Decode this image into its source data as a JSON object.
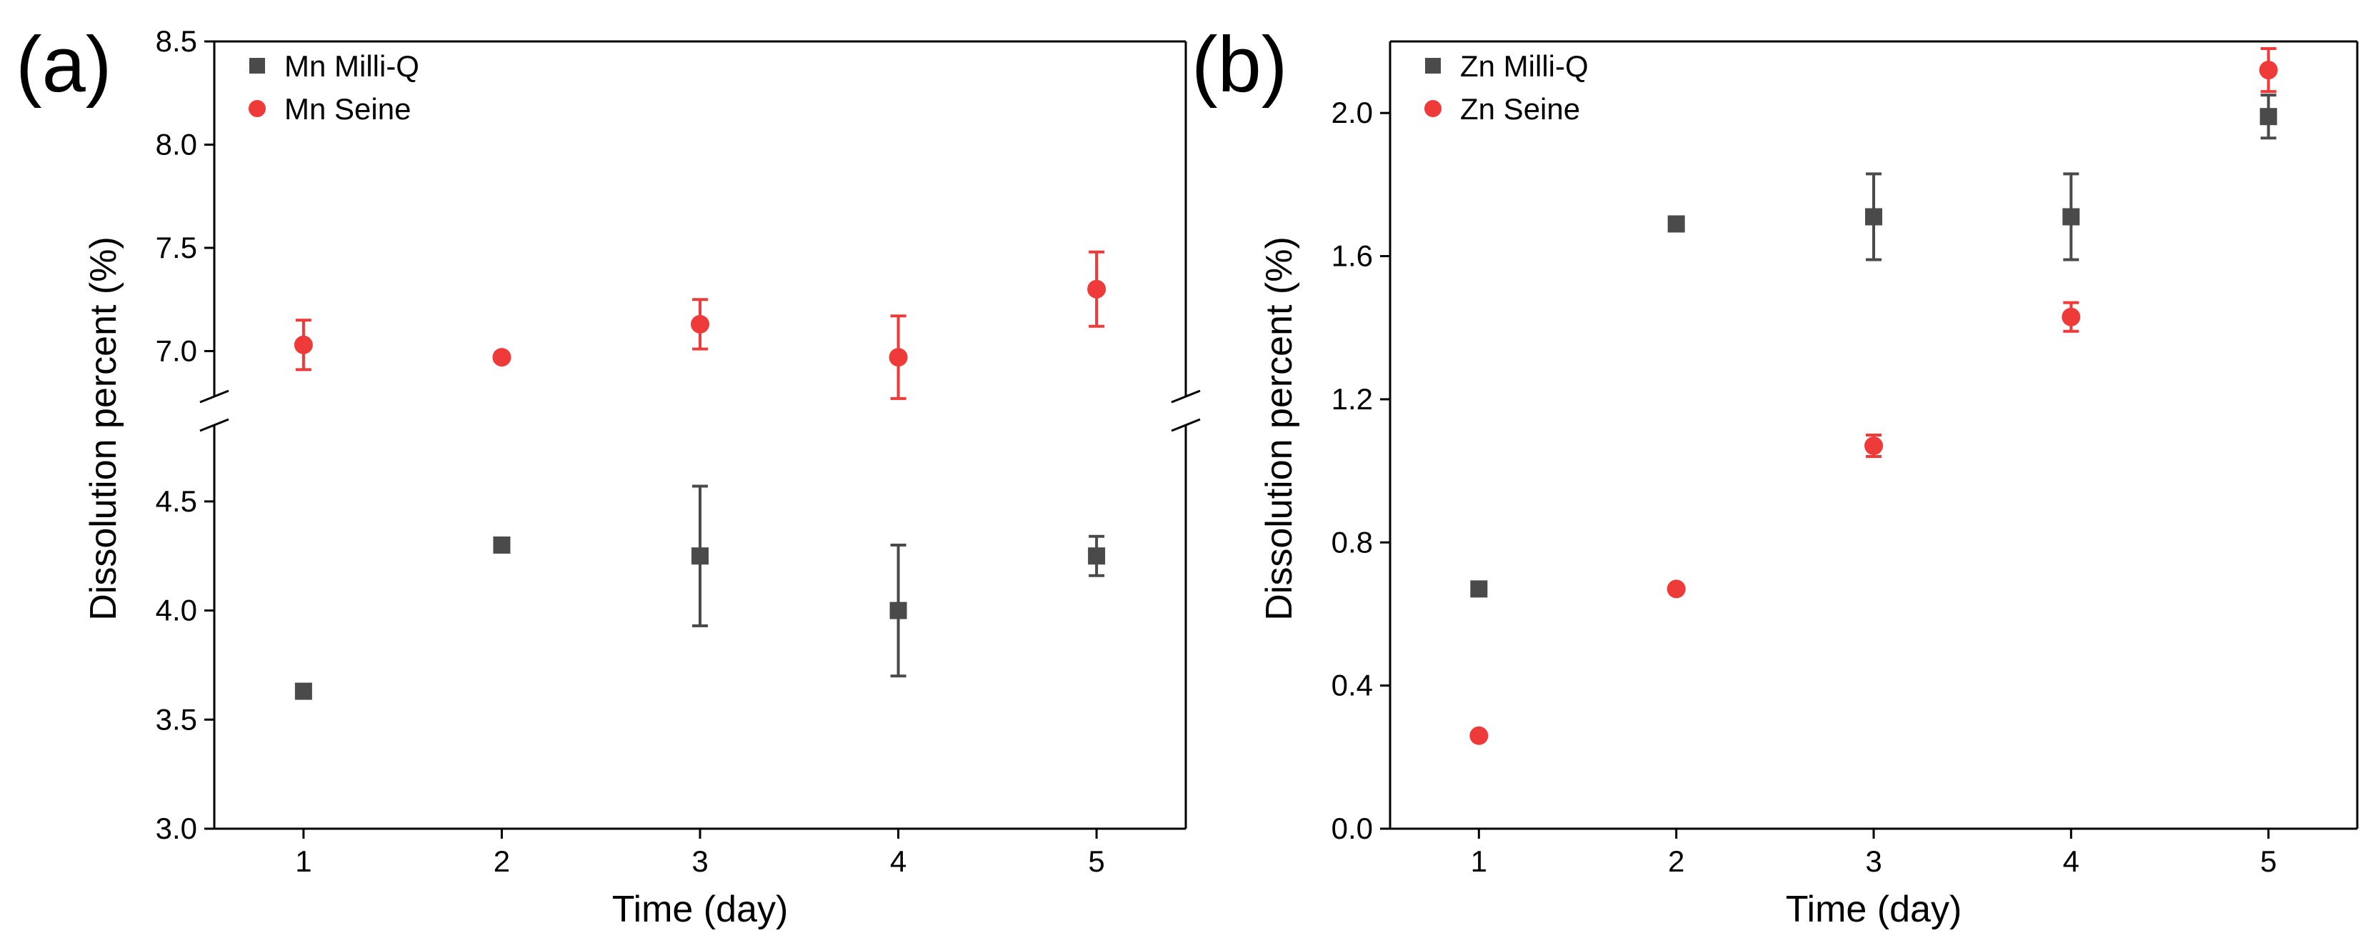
{
  "colors": {
    "milliq": "#4a4a4a",
    "seine": "#ef3a3a",
    "axis": "#000000"
  },
  "chart_data": [
    {
      "type": "scatter",
      "panel_label": "(a)",
      "title": "",
      "xlabel": "Time (day)",
      "ylabel": "Dissolution percent (%)",
      "x_ticks": [
        1,
        2,
        3,
        4,
        5
      ],
      "x_tick_labels": [
        "1",
        "2",
        "3",
        "4",
        "5"
      ],
      "xlim": [
        0.55,
        5.45
      ],
      "broken_axis": true,
      "segments": [
        {
          "ylim": [
            3.0,
            4.85
          ],
          "ticks": [
            3.0,
            3.5,
            4.0,
            4.5
          ],
          "tick_labels": [
            "3.0",
            "3.5",
            "4.0",
            "4.5"
          ]
        },
        {
          "ylim": [
            6.78,
            8.5
          ],
          "ticks": [
            7.0,
            7.5,
            8.0,
            8.5
          ],
          "tick_labels": [
            "7.0",
            "7.5",
            "8.0",
            "8.5"
          ]
        }
      ],
      "legend_position": "top-left",
      "series": [
        {
          "name": "Mn Milli-Q",
          "marker": "square",
          "color": "#4a4a4a",
          "segment": 0,
          "x": [
            1,
            2,
            3,
            4,
            5
          ],
          "y": [
            3.63,
            4.3,
            4.25,
            4.0,
            4.25
          ],
          "err": [
            0.02,
            0.02,
            0.32,
            0.3,
            0.09
          ]
        },
        {
          "name": "Mn Seine",
          "marker": "circle",
          "color": "#ef3a3a",
          "segment": 1,
          "x": [
            1,
            2,
            3,
            4,
            5
          ],
          "y": [
            7.03,
            6.97,
            7.13,
            6.97,
            7.3
          ],
          "err": [
            0.12,
            0.02,
            0.12,
            0.2,
            0.18
          ]
        }
      ]
    },
    {
      "type": "scatter",
      "panel_label": "(b)",
      "title": "",
      "xlabel": "Time (day)",
      "ylabel": "Dissolution percent (%)",
      "x_ticks": [
        1,
        2,
        3,
        4,
        5
      ],
      "x_tick_labels": [
        "1",
        "2",
        "3",
        "4",
        "5"
      ],
      "xlim": [
        0.55,
        5.45
      ],
      "broken_axis": false,
      "segments": [
        {
          "ylim": [
            0.0,
            2.2
          ],
          "ticks": [
            0.0,
            0.4,
            0.8,
            1.2,
            1.6,
            2.0
          ],
          "tick_labels": [
            "0.0",
            "0.4",
            "0.8",
            "1.2",
            "1.6",
            "2.0"
          ]
        }
      ],
      "legend_position": "top-left",
      "series": [
        {
          "name": "Zn Milli-Q",
          "marker": "square",
          "color": "#4a4a4a",
          "segment": 0,
          "x": [
            1,
            2,
            3,
            4,
            5
          ],
          "y": [
            0.67,
            1.69,
            1.71,
            1.71,
            1.99
          ],
          "err": [
            0.01,
            0.01,
            0.12,
            0.12,
            0.06
          ]
        },
        {
          "name": "Zn Seine",
          "marker": "circle",
          "color": "#ef3a3a",
          "segment": 0,
          "x": [
            1,
            2,
            3,
            4,
            5
          ],
          "y": [
            0.26,
            0.67,
            1.07,
            1.43,
            2.12
          ],
          "err": [
            0.01,
            0.01,
            0.03,
            0.04,
            0.06
          ]
        }
      ]
    }
  ]
}
